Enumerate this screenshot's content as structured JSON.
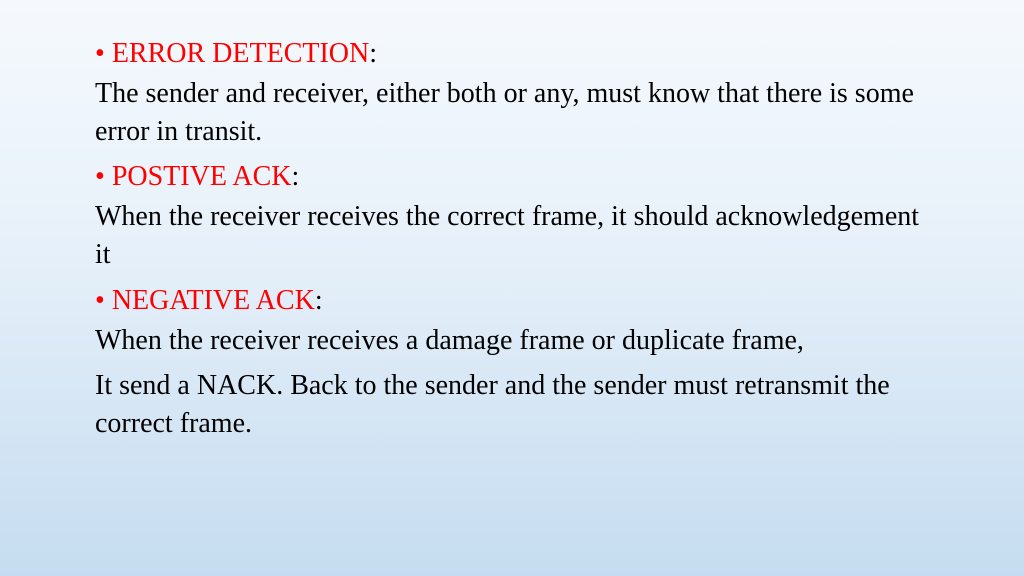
{
  "slide": {
    "background_gradient": [
      "#f5f9fd",
      "#e8f1fa",
      "#c5dcf0"
    ],
    "font_family": "Times New Roman",
    "font_size_pt": 21,
    "text_color": "#000000",
    "heading_color": "#ff0000",
    "bullet_color": "#ff0000",
    "items": [
      {
        "bullet": "•",
        "heading": "ERROR DETECTION",
        "colon": ":",
        "body": "The sender and receiver, either both or any, must know that there is some error in transit."
      },
      {
        "bullet": "•",
        "heading": "POSTIVE ACK",
        "colon": ":",
        "body": "When the receiver receives the correct frame, it should acknowledgement it"
      },
      {
        "bullet": "•",
        "heading": "NEGATIVE ACK",
        "colon": ":",
        "body": "When the receiver receives a damage frame or duplicate frame,"
      }
    ],
    "trailing_body": "It send a NACK. Back to the sender and the sender must retransmit the correct frame."
  }
}
